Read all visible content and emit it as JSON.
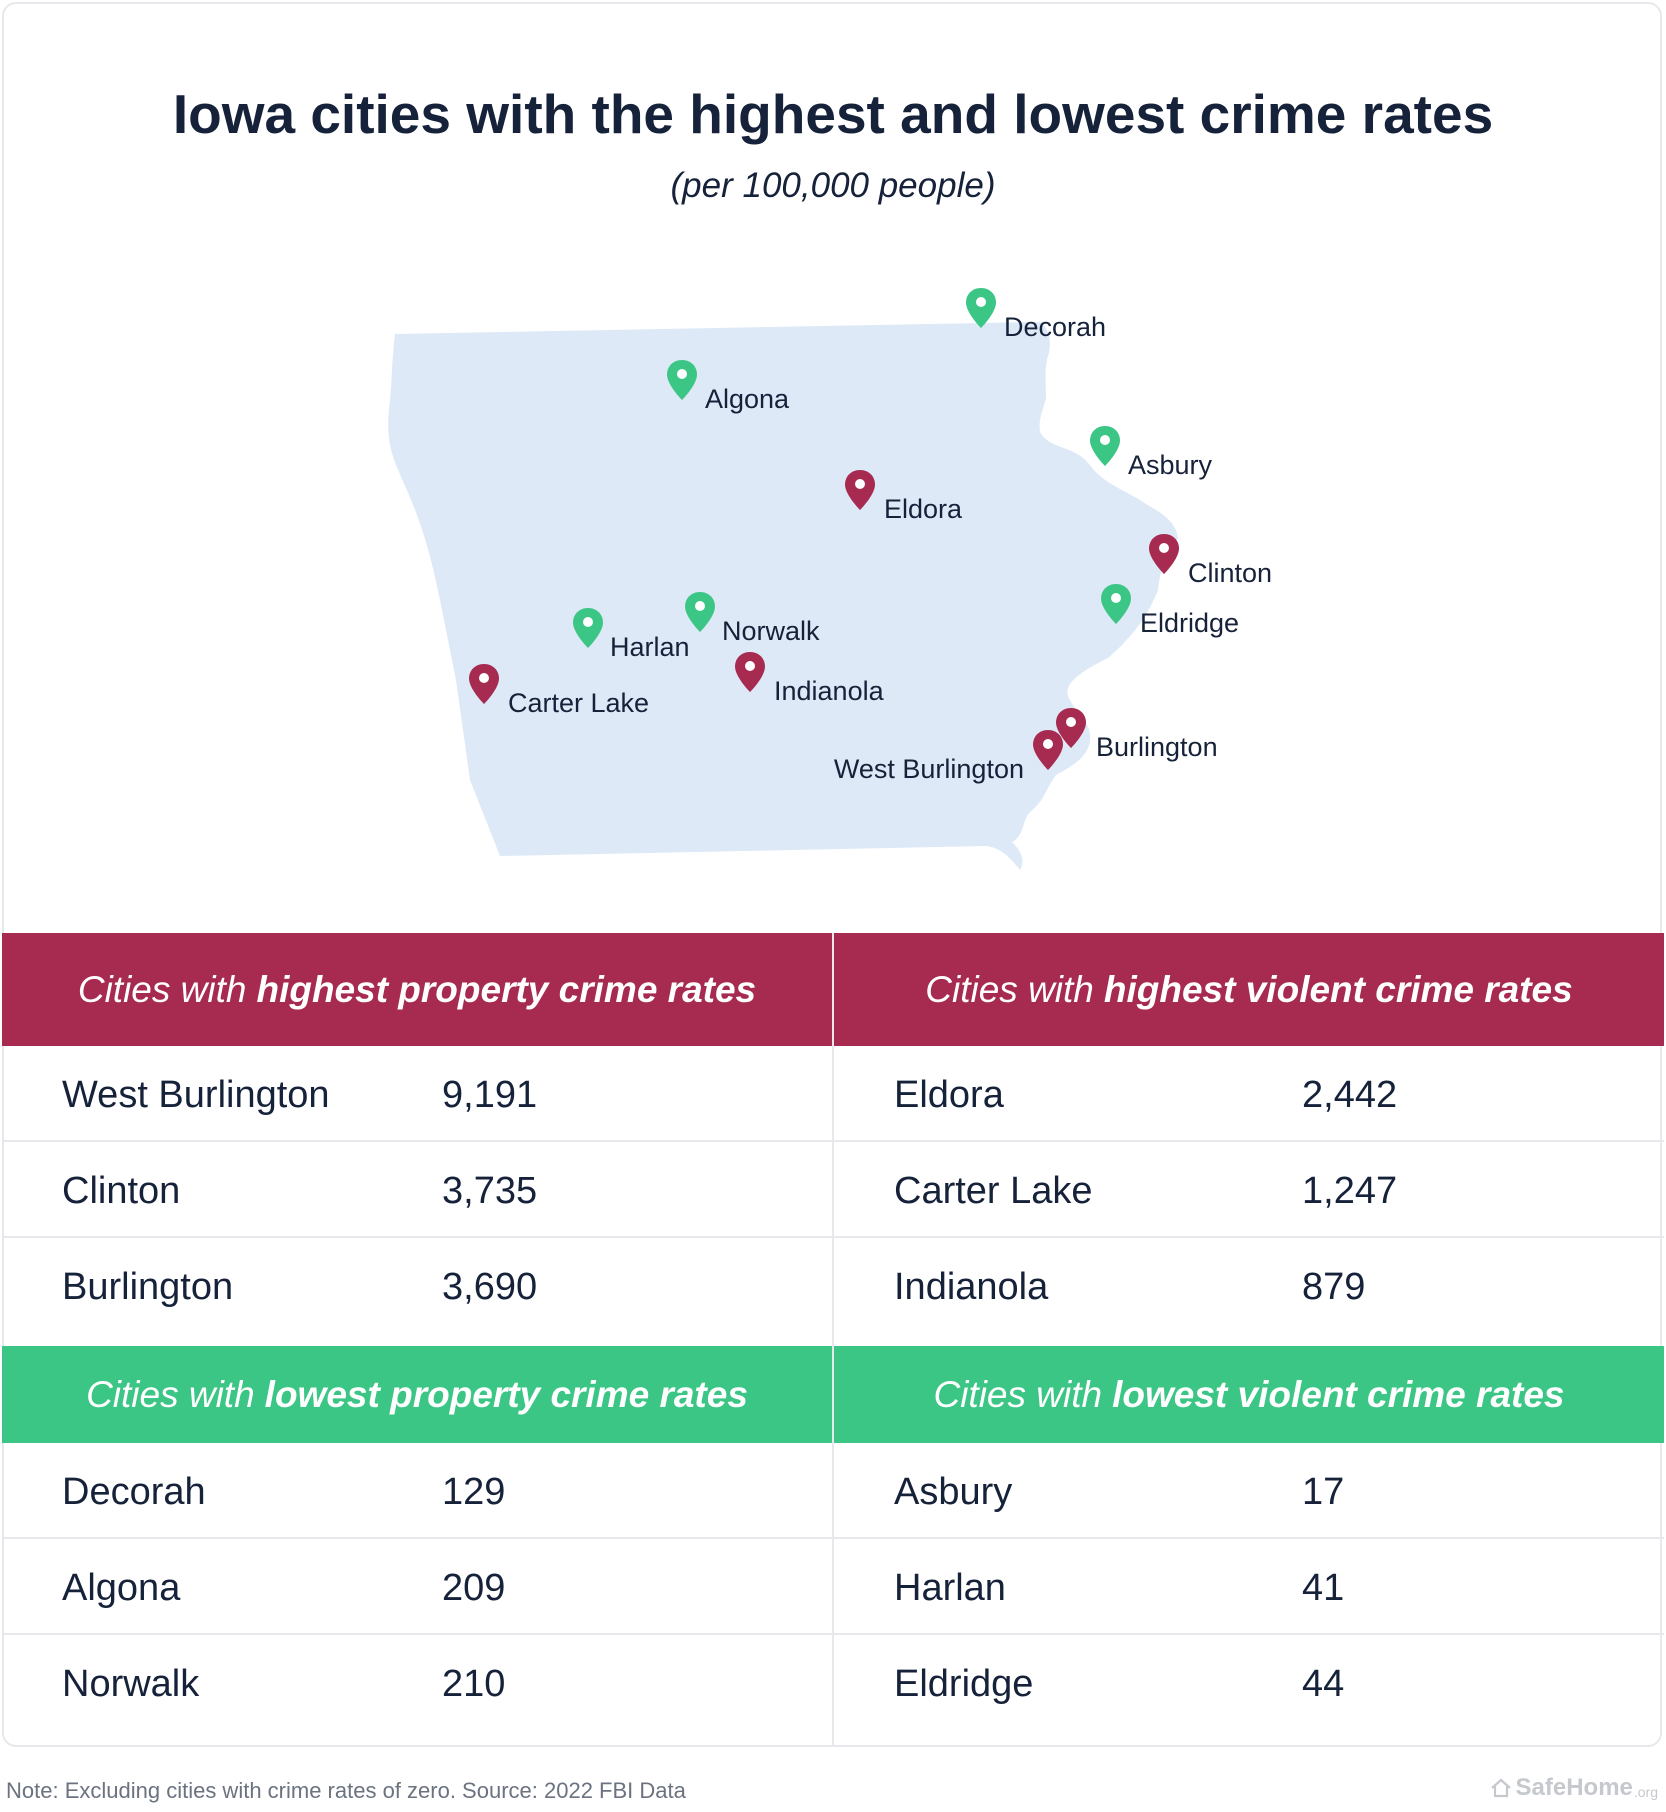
{
  "header": {
    "title": "Iowa cities with the highest and lowest crime rates",
    "subtitle": "(per 100,000 people)"
  },
  "colors": {
    "high": "#a72a50",
    "low": "#3cc685",
    "state_fill": "#dde9f7",
    "text": "#16213a"
  },
  "map": {
    "pins": [
      {
        "name": "Decorah",
        "group": "low"
      },
      {
        "name": "Algona",
        "group": "low"
      },
      {
        "name": "Asbury",
        "group": "low"
      },
      {
        "name": "Eldora",
        "group": "high"
      },
      {
        "name": "Clinton",
        "group": "high"
      },
      {
        "name": "Eldridge",
        "group": "low"
      },
      {
        "name": "Norwalk",
        "group": "low"
      },
      {
        "name": "Harlan",
        "group": "low"
      },
      {
        "name": "Carter Lake",
        "group": "high"
      },
      {
        "name": "Indianola",
        "group": "high"
      },
      {
        "name": "Burlington",
        "group": "high"
      },
      {
        "name": "West Burlington",
        "group": "high"
      }
    ]
  },
  "tables": {
    "high_property": {
      "label_prefix": "Cities with",
      "label_strong": "highest property crime rates",
      "rows": [
        {
          "city": "West Burlington",
          "value": "9,191"
        },
        {
          "city": "Clinton",
          "value": "3,735"
        },
        {
          "city": "Burlington",
          "value": "3,690"
        }
      ]
    },
    "high_violent": {
      "label_prefix": "Cities with",
      "label_strong": "highest violent crime rates",
      "rows": [
        {
          "city": "Eldora",
          "value": "2,442"
        },
        {
          "city": "Carter Lake",
          "value": "1,247"
        },
        {
          "city": "Indianola",
          "value": "879"
        }
      ]
    },
    "low_property": {
      "label_prefix": "Cities with",
      "label_strong": "lowest property crime rates",
      "rows": [
        {
          "city": "Decorah",
          "value": "129"
        },
        {
          "city": "Algona",
          "value": "209"
        },
        {
          "city": "Norwalk",
          "value": "210"
        }
      ]
    },
    "low_violent": {
      "label_prefix": "Cities with",
      "label_strong": "lowest violent crime rates",
      "rows": [
        {
          "city": "Asbury",
          "value": "17"
        },
        {
          "city": "Harlan",
          "value": "41"
        },
        {
          "city": "Eldridge",
          "value": "44"
        }
      ]
    }
  },
  "footer": {
    "note": "Note: Excluding cities with crime rates of zero. Source: 2022 FBI Data",
    "brand": "SafeHome",
    "brand_domain": ".org",
    "brand_icon": "house-icon"
  }
}
